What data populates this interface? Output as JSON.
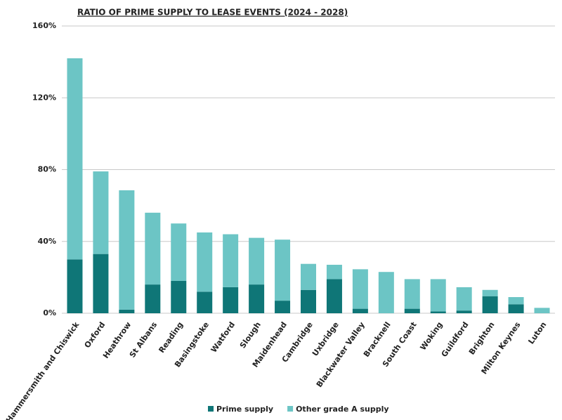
{
  "chart_data": {
    "type": "stacked_bar",
    "title": "RATIO OF PRIME SUPPLY TO LEASE EVENTS (2024 - 2028)",
    "categories": [
      "Hammersmith and Chiswick",
      "Oxford",
      "Heathrow",
      "St Albans",
      "Reading",
      "Basingstoke",
      "Watford",
      "Slough",
      "Maidenhead",
      "Cambridge",
      "Uxbridge",
      "Blackwater Valley",
      "Bracknell",
      "South Coast",
      "Woking",
      "Guildford",
      "Brighton",
      "Milton Keynes",
      "Luton"
    ],
    "series": [
      {
        "name": "Prime supply",
        "color": "#0f7677",
        "values": [
          30,
          33,
          2,
          16,
          18,
          12,
          14.5,
          16,
          7,
          13,
          19,
          2.5,
          0,
          2.5,
          1,
          1.5,
          9.5,
          5,
          0
        ]
      },
      {
        "name": "Other grade A supply",
        "color": "#6cc5c5",
        "values": [
          112,
          46,
          66.5,
          40,
          32,
          33,
          29.5,
          26,
          34,
          14.5,
          8,
          22,
          23,
          16.5,
          18,
          13,
          3.5,
          4,
          3
        ]
      }
    ],
    "ylim": [
      0,
      160
    ],
    "yticks": [
      {
        "value": 0,
        "label": "0%"
      },
      {
        "value": 40,
        "label": "40%"
      },
      {
        "value": 80,
        "label": "80%"
      },
      {
        "value": 120,
        "label": "120%"
      },
      {
        "value": 160,
        "label": "160%"
      }
    ],
    "grid": true,
    "legend": "bottom"
  }
}
